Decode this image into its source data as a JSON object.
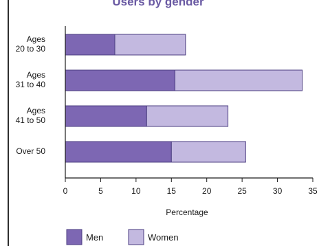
{
  "chart_data": {
    "type": "bar",
    "orientation": "horizontal",
    "stacked": true,
    "title": "Users by gender",
    "categories": [
      [
        "Ages",
        "20 to 30"
      ],
      [
        "Ages",
        "31 to 40"
      ],
      [
        "Ages",
        "41 to 50"
      ],
      [
        "Over 50"
      ]
    ],
    "series": [
      {
        "name": "Men",
        "values": [
          7,
          15.5,
          11.5,
          15
        ],
        "color": "#7d67b3"
      },
      {
        "name": "Women",
        "values": [
          10,
          18,
          11.5,
          10.5
        ],
        "color": "#c3b9e0"
      }
    ],
    "xlabel": "Percentage",
    "ylabel": "",
    "xlim": [
      0,
      35
    ],
    "xticks": [
      0,
      5,
      10,
      15,
      20,
      25,
      30,
      35
    ],
    "grid": false,
    "legend_position": "bottom-left",
    "colors": {
      "frame": "#2d2d2d",
      "axis": "#1a1a1a",
      "title": "#6a5aa3"
    }
  }
}
